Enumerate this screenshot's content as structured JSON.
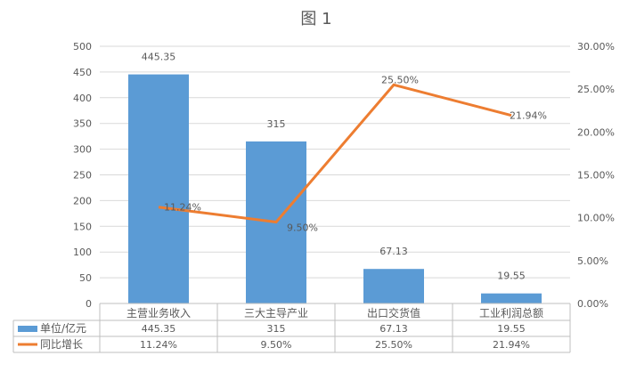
{
  "chart_data": {
    "type": "bar+line",
    "title": "图 1",
    "categories": [
      "主营业务收入",
      "三大主导产业",
      "出口交货值",
      "工业利润总额"
    ],
    "series": [
      {
        "name": "单位/亿元",
        "type": "bar",
        "axis": "left",
        "color": "#5b9bd5",
        "values": [
          445.35,
          315,
          67.13,
          19.55
        ],
        "labels": [
          "445.35",
          "315",
          "67.13",
          "19.55"
        ]
      },
      {
        "name": "同比增长",
        "type": "line",
        "axis": "right",
        "color": "#ed7d31",
        "values": [
          11.24,
          9.5,
          25.5,
          21.94
        ],
        "labels": [
          "11.24%",
          "9.50%",
          "25.50%",
          "21.94%"
        ]
      }
    ],
    "ylim": [
      0,
      500
    ],
    "y_ticks": [
      "0",
      "50",
      "100",
      "150",
      "200",
      "250",
      "300",
      "350",
      "400",
      "450",
      "500"
    ],
    "y2lim": [
      0,
      30
    ],
    "y2_ticks": [
      "0.00%",
      "5.00%",
      "10.00%",
      "15.00%",
      "20.00%",
      "25.00%",
      "30.00%"
    ],
    "grid": true,
    "legend": "data-table"
  }
}
